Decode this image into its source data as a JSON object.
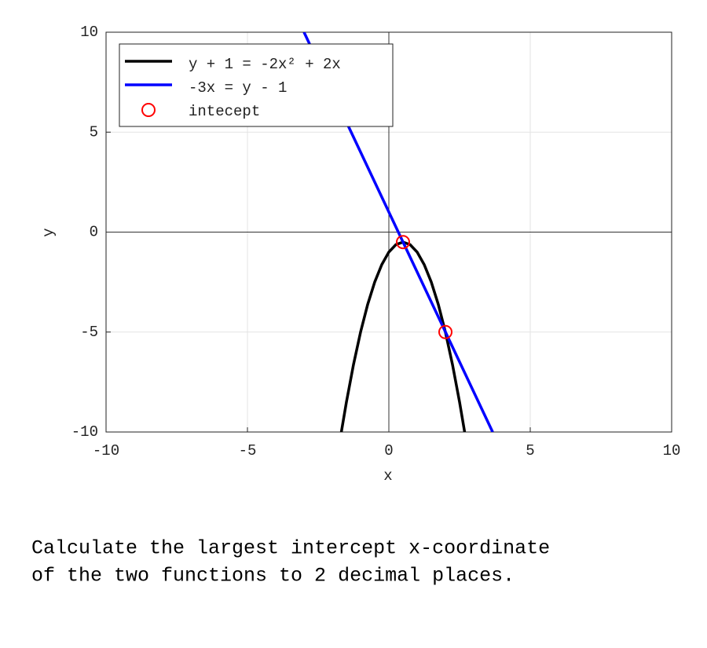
{
  "chart_data": {
    "type": "line",
    "xlabel": "x",
    "ylabel": "y",
    "xlim": [
      -10,
      10
    ],
    "ylim": [
      -10,
      10
    ],
    "xticks": [
      -10,
      -5,
      0,
      5,
      10
    ],
    "yticks": [
      -10,
      -5,
      0,
      5,
      10
    ],
    "grid": true,
    "legend": "upper left",
    "series": [
      {
        "name": "y + 1 = -2x² + 2x",
        "color": "#000000",
        "type": "line",
        "x": [
          -1.68,
          -1.5,
          -1.25,
          -1,
          -0.75,
          -0.5,
          -0.25,
          0,
          0.25,
          0.5,
          0.75,
          1,
          1.25,
          1.5,
          1.75,
          2,
          2.25,
          2.5,
          2.68
        ],
        "values": [
          -10,
          -8.5,
          -6.625,
          -5,
          -3.625,
          -2.5,
          -1.625,
          -1,
          -0.625,
          -0.5,
          -0.625,
          -1,
          -1.625,
          -2.5,
          -3.625,
          -5,
          -6.625,
          -8.5,
          -10
        ]
      },
      {
        "name": "-3x = y - 1",
        "color": "#0000ff",
        "type": "line",
        "x": [
          -3,
          3.67
        ],
        "values": [
          10,
          -10
        ]
      },
      {
        "name": "intecept",
        "color": "#ff0000",
        "type": "scatter",
        "x": [
          0.5,
          2
        ],
        "values": [
          -0.5,
          -5
        ]
      }
    ]
  },
  "question": [
    "Calculate the largest intercept x-coordinate",
    "of the two functions to 2 decimal places."
  ]
}
